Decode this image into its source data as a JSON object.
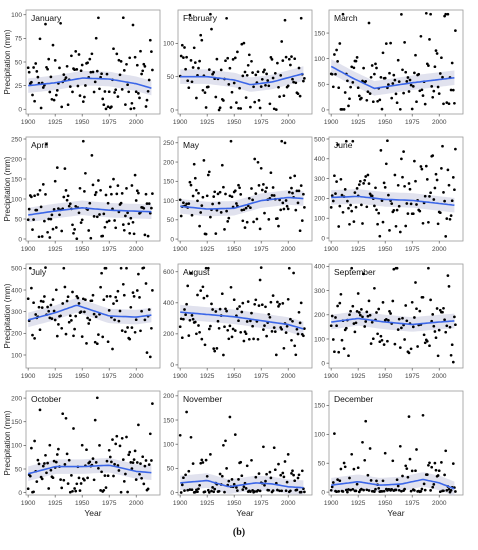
{
  "figure": {
    "caption": "(b)",
    "xlabel": "Year",
    "ylabel": "Precipitation (mm)",
    "x_ticks": [
      1900,
      1925,
      1950,
      1975,
      2000
    ],
    "x_range": [
      1898,
      2022
    ]
  },
  "chart_data": [
    {
      "type": "scatter",
      "title": "January",
      "ylim": [
        -5,
        105
      ],
      "y_ticks": [
        0,
        25,
        50,
        75,
        100
      ],
      "smooth": [
        [
          1900,
          25
        ],
        [
          1925,
          28
        ],
        [
          1950,
          33
        ],
        [
          1975,
          32
        ],
        [
          2000,
          27
        ],
        [
          2015,
          22
        ]
      ]
    },
    {
      "type": "scatter",
      "title": "February",
      "ylim": [
        -6,
        150
      ],
      "y_ticks": [
        0,
        50,
        100
      ],
      "smooth": [
        [
          1900,
          50
        ],
        [
          1925,
          50
        ],
        [
          1950,
          45
        ],
        [
          1965,
          38
        ],
        [
          1985,
          42
        ],
        [
          2015,
          55
        ]
      ]
    },
    {
      "type": "scatter",
      "title": "March",
      "ylim": [
        -8,
        195
      ],
      "y_ticks": [
        0,
        50,
        100,
        150
      ],
      "smooth": [
        [
          1900,
          85
        ],
        [
          1920,
          62
        ],
        [
          1940,
          42
        ],
        [
          1975,
          53
        ],
        [
          2015,
          63
        ]
      ]
    },
    {
      "type": "scatter",
      "title": "April",
      "ylim": [
        -5,
        255
      ],
      "y_ticks": [
        0,
        50,
        100,
        150,
        200,
        250
      ],
      "smooth": [
        [
          1900,
          60
        ],
        [
          1925,
          70
        ],
        [
          1950,
          78
        ],
        [
          1975,
          72
        ],
        [
          2015,
          68
        ]
      ]
    },
    {
      "type": "scatter",
      "title": "May",
      "ylim": [
        -5,
        265
      ],
      "y_ticks": [
        0,
        50,
        100,
        150,
        200,
        250
      ],
      "smooth": [
        [
          1900,
          85
        ],
        [
          1925,
          78
        ],
        [
          1950,
          80
        ],
        [
          1975,
          100
        ],
        [
          2000,
          108
        ],
        [
          2015,
          105
        ]
      ]
    },
    {
      "type": "scatter",
      "title": "June",
      "ylim": [
        -15,
        510
      ],
      "y_ticks": [
        0,
        100,
        200,
        300,
        400,
        500
      ],
      "smooth": [
        [
          1900,
          205
        ],
        [
          1925,
          210
        ],
        [
          1950,
          195
        ],
        [
          1975,
          190
        ],
        [
          2015,
          165
        ]
      ]
    },
    {
      "type": "scatter",
      "title": "July",
      "ylim": [
        40,
        520
      ],
      "y_ticks": [
        100,
        200,
        300,
        400,
        500
      ],
      "smooth": [
        [
          1900,
          262
        ],
        [
          1925,
          295
        ],
        [
          1945,
          330
        ],
        [
          1975,
          280
        ],
        [
          2000,
          275
        ],
        [
          2015,
          285
        ]
      ]
    },
    {
      "type": "scatter",
      "title": "August",
      "ylim": [
        -20,
        650
      ],
      "y_ticks": [
        0,
        200,
        400,
        600
      ],
      "smooth": [
        [
          1900,
          340
        ],
        [
          1925,
          325
        ],
        [
          1950,
          310
        ],
        [
          1975,
          285
        ],
        [
          2000,
          260
        ],
        [
          2015,
          230
        ]
      ]
    },
    {
      "type": "scatter",
      "title": "September",
      "ylim": [
        -20,
        410
      ],
      "y_ticks": [
        0,
        100,
        200,
        300,
        400
      ],
      "smooth": [
        [
          1900,
          170
        ],
        [
          1925,
          185
        ],
        [
          1950,
          170
        ],
        [
          1975,
          160
        ],
        [
          2000,
          170
        ],
        [
          2015,
          175
        ]
      ]
    },
    {
      "type": "scatter",
      "title": "October",
      "ylim": [
        -5,
        215
      ],
      "y_ticks": [
        0,
        50,
        100,
        150,
        200
      ],
      "smooth": [
        [
          1900,
          40
        ],
        [
          1925,
          55
        ],
        [
          1950,
          55
        ],
        [
          1975,
          58
        ],
        [
          2000,
          45
        ],
        [
          2015,
          42
        ]
      ]
    },
    {
      "type": "scatter",
      "title": "November",
      "ylim": [
        -5,
        210
      ],
      "y_ticks": [
        0,
        50,
        100,
        150,
        200
      ],
      "smooth": [
        [
          1900,
          20
        ],
        [
          1925,
          25
        ],
        [
          1945,
          12
        ],
        [
          1970,
          20
        ],
        [
          1985,
          18
        ],
        [
          2000,
          12
        ],
        [
          2015,
          10
        ]
      ]
    },
    {
      "type": "scatter",
      "title": "December",
      "ylim": [
        -5,
        175
      ],
      "y_ticks": [
        0,
        50,
        100,
        150
      ],
      "smooth": [
        [
          1900,
          12
        ],
        [
          1925,
          18
        ],
        [
          1945,
          12
        ],
        [
          1965,
          14
        ],
        [
          1985,
          22
        ],
        [
          2000,
          16
        ],
        [
          2015,
          5
        ]
      ]
    }
  ]
}
